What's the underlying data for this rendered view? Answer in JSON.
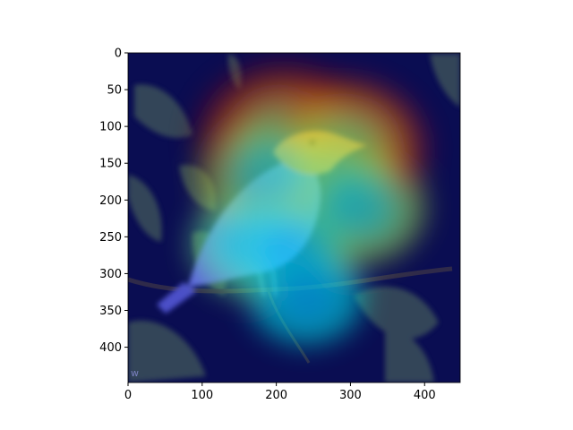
{
  "chart_data": {
    "type": "heatmap",
    "title": "",
    "xlabel": "",
    "ylabel": "",
    "xlim": [
      0,
      448
    ],
    "ylim": [
      448,
      0
    ],
    "x_ticks": [
      0,
      100,
      200,
      300,
      400
    ],
    "y_ticks": [
      0,
      50,
      100,
      150,
      200,
      250,
      300,
      350,
      400
    ],
    "colormap": "jet",
    "overlay_image": "bird-on-branch-photo",
    "watermark": "w",
    "grid": false,
    "legend": "none",
    "heat_peaks": [
      {
        "x": 210,
        "y": 115,
        "level": 1.0
      },
      {
        "x": 290,
        "y": 130,
        "level": 0.85
      },
      {
        "x": 270,
        "y": 180,
        "level": 0.65
      },
      {
        "x": 190,
        "y": 165,
        "level": 0.5
      },
      {
        "x": 310,
        "y": 210,
        "level": 0.45
      },
      {
        "x": 170,
        "y": 260,
        "level": 0.35
      },
      {
        "x": 220,
        "y": 270,
        "level": 0.3
      },
      {
        "x": 240,
        "y": 330,
        "level": 0.2
      }
    ]
  },
  "colors": {
    "background": "#ffffff",
    "cold": "#0a0d52",
    "foliage": "#3a4f5a",
    "bird_blue": "#5a5ee0",
    "bird_head": "#d96a3a",
    "branch": "#2f2a4a"
  }
}
